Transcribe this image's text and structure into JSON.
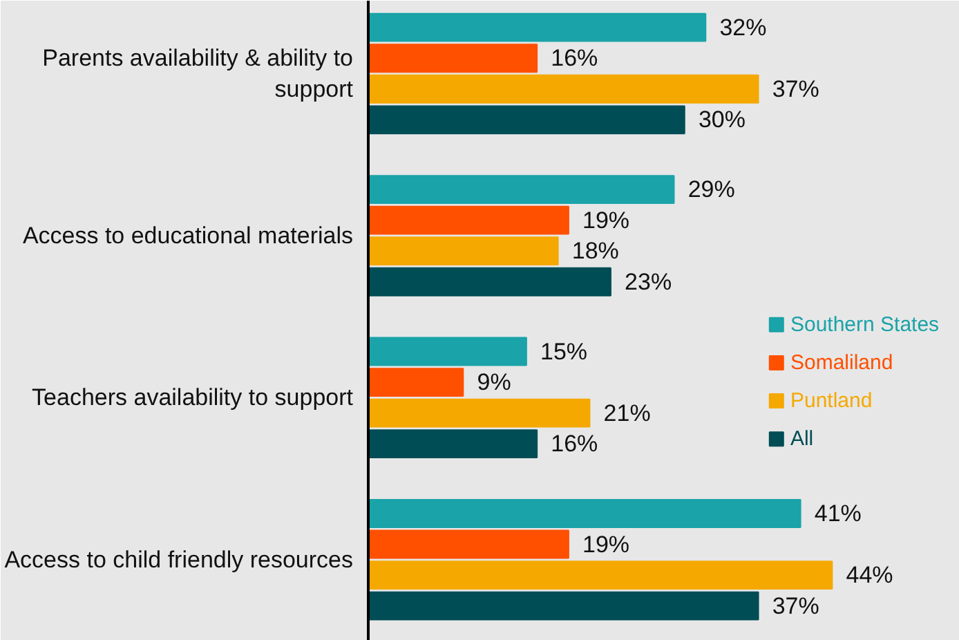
{
  "chart_data": {
    "type": "bar",
    "orientation": "horizontal",
    "categories": [
      "Parents availability & ability to support",
      "Access to educational materials",
      "Teachers availability to support",
      "Access to child friendly resources"
    ],
    "series": [
      {
        "name": "Southern States",
        "color": "#1aa3a8",
        "values": [
          32,
          29,
          15,
          41
        ],
        "value_labels": [
          "32%",
          "29%",
          "15%",
          "41%"
        ]
      },
      {
        "name": "Somaliland",
        "color": "#ff5000",
        "values": [
          16,
          19,
          9,
          19
        ],
        "value_labels": [
          "16%",
          "19%",
          "9%",
          "19%"
        ]
      },
      {
        "name": "Puntland",
        "color": "#f5a800",
        "values": [
          37,
          18,
          21,
          44
        ],
        "value_labels": [
          "37%",
          "18%",
          "21%",
          "44%"
        ]
      },
      {
        "name": "All",
        "color": "#004d55",
        "values": [
          30,
          23,
          16,
          37
        ],
        "value_labels": [
          "30%",
          "23%",
          "16%",
          "37%"
        ]
      }
    ],
    "legend": "right"
  }
}
